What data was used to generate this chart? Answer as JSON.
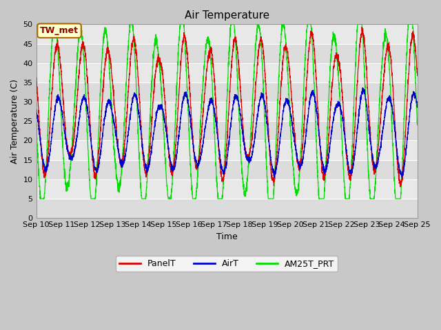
{
  "title": "Air Temperature",
  "ylabel": "Air Temperature (C)",
  "xlabel": "Time",
  "ylim": [
    0,
    50
  ],
  "yticks": [
    0,
    5,
    10,
    15,
    20,
    25,
    30,
    35,
    40,
    45,
    50
  ],
  "x_labels": [
    "Sep 10",
    "Sep 11",
    "Sep 12",
    "Sep 13",
    "Sep 14",
    "Sep 15",
    "Sep 16",
    "Sep 17",
    "Sep 18",
    "Sep 19",
    "Sep 20",
    "Sep 21",
    "Sep 22",
    "Sep 23",
    "Sep 24",
    "Sep 25"
  ],
  "tw_met_label": "TW_met",
  "legend_labels": [
    "PanelT",
    "AirT",
    "AM25T_PRT"
  ],
  "line_colors": [
    "#dd0000",
    "#0000cc",
    "#00dd00"
  ],
  "fig_bg_color": "#c8c8c8",
  "band_colors": [
    "#dcdcdc",
    "#e8e8e8"
  ],
  "title_fontsize": 11,
  "axis_label_fontsize": 9,
  "tick_fontsize": 8,
  "n_points": 3600,
  "panel_base_max": 43,
  "panel_base_min": 14,
  "air_base_max": 30,
  "air_base_min": 14,
  "am25_base_max": 47,
  "am25_base_min": 6
}
